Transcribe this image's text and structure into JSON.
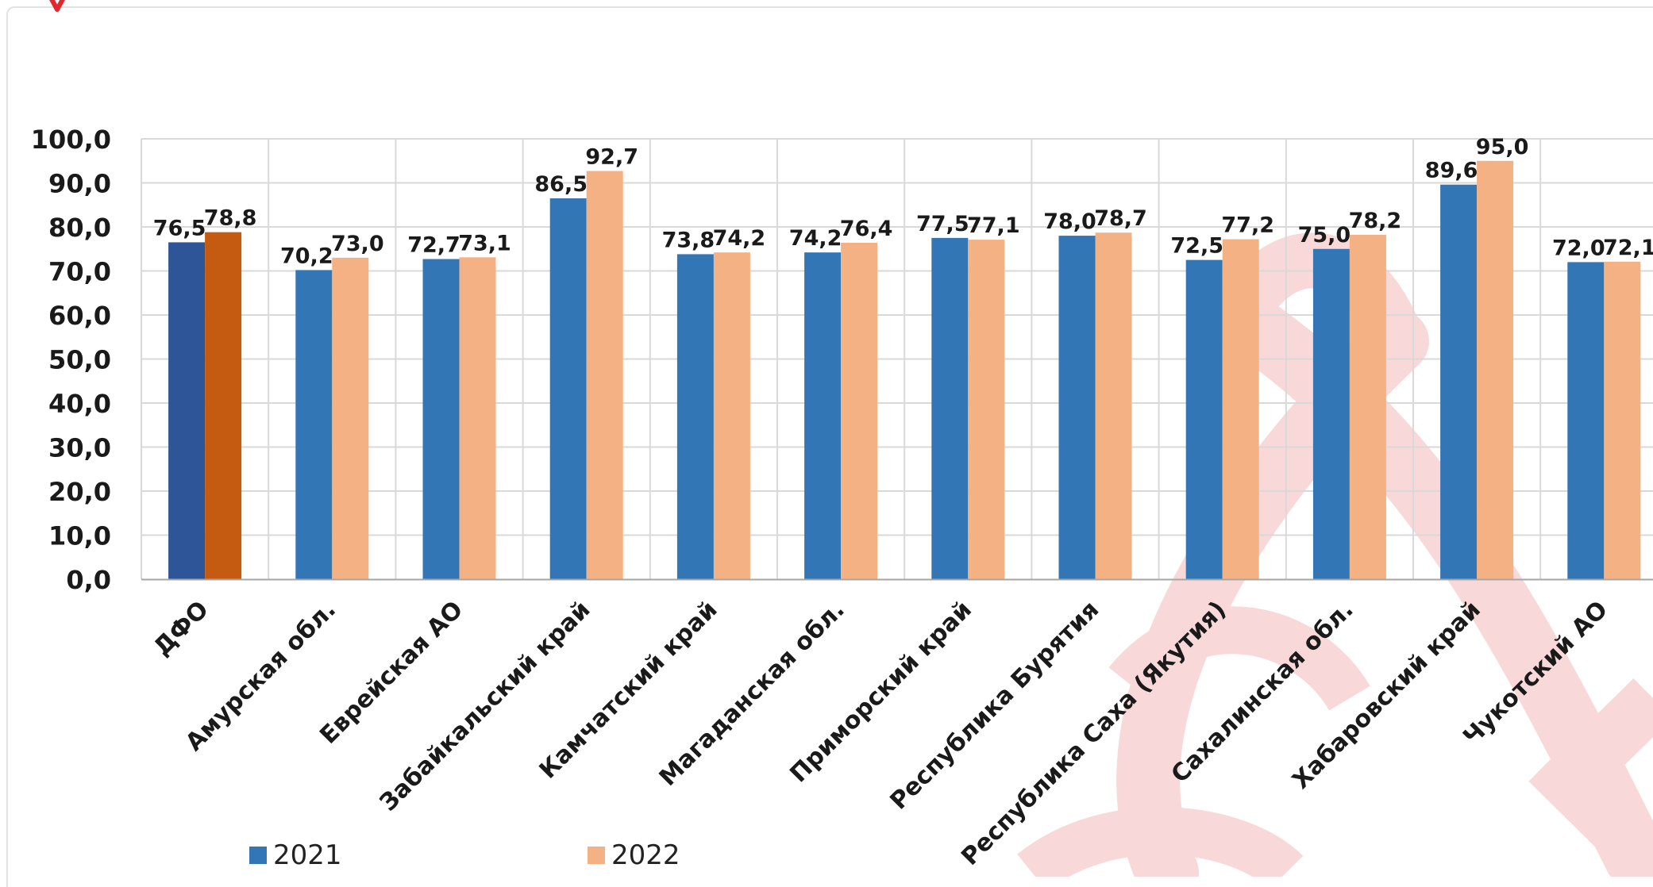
{
  "colors": {
    "series_2021": "#3376b6",
    "series_2022": "#f4b183",
    "dfo_2021": "#2e5597",
    "dfo_2022": "#c55a11",
    "grid": "#d9d9d9",
    "watermark": "#f6cccc",
    "logo": "#e0282e"
  },
  "icons": {
    "corner_logo": "red-ribbon-icon",
    "watermark": "awareness-ribbon-watermark"
  },
  "chart_data": {
    "type": "bar",
    "title": "",
    "xlabel": "",
    "ylabel": "",
    "ylim": [
      0,
      100
    ],
    "yticks": [
      "0,0",
      "10,0",
      "20,0",
      "30,0",
      "40,0",
      "50,0",
      "60,0",
      "70,0",
      "80,0",
      "90,0",
      "100,0"
    ],
    "grid": true,
    "legend_position": "bottom",
    "categories": [
      "ДФО",
      "Амурская обл.",
      "Еврейская АО",
      "Забайкальский край",
      "Камчатский край",
      "Магаданская обл.",
      "Приморский край",
      "Республика Бурятия",
      "Республика Саха (Якутия)",
      "Сахалинская обл.",
      "Хабаровский край",
      "Чукотский АО"
    ],
    "series": [
      {
        "name": "2021",
        "values": [
          76.5,
          70.2,
          72.7,
          86.5,
          73.8,
          74.2,
          77.5,
          78.0,
          72.5,
          75.0,
          89.6,
          72.0
        ],
        "labels": [
          "76,5",
          "70,2",
          "72,7",
          "86,5",
          "73,8",
          "74,2",
          "77,5",
          "78,0",
          "72,5",
          "75,0",
          "89,6",
          "72,0"
        ]
      },
      {
        "name": "2022",
        "values": [
          78.8,
          73.0,
          73.1,
          92.7,
          74.2,
          76.4,
          77.1,
          78.7,
          77.2,
          78.2,
          95.0,
          72.1
        ],
        "labels": [
          "78,8",
          "73,0",
          "73,1",
          "92,7",
          "74,2",
          "76,4",
          "77,1",
          "78,7",
          "77,2",
          "78,2",
          "95,0",
          "72,1"
        ]
      }
    ]
  }
}
